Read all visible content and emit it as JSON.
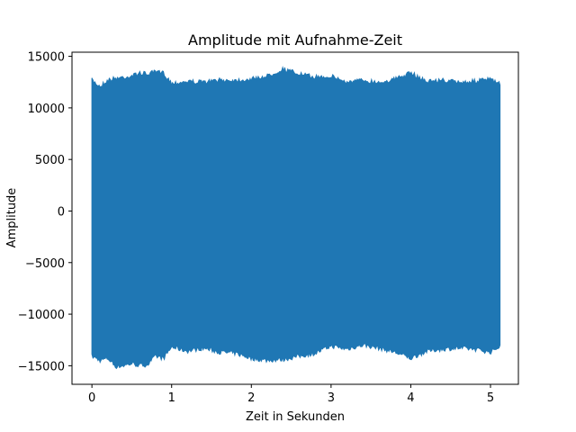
{
  "chart_data": {
    "type": "area",
    "title": "Amplitude mit Aufnahme-Zeit",
    "xlabel": "Zeit in Sekunden",
    "ylabel": "Amplitude",
    "xlim": [
      -0.25,
      5.35
    ],
    "ylim": [
      -16800,
      15400
    ],
    "xticks": [
      0,
      1,
      2,
      3,
      4,
      5
    ],
    "xtick_labels": [
      "0",
      "1",
      "2",
      "3",
      "4",
      "5"
    ],
    "yticks": [
      -15000,
      -10000,
      -5000,
      0,
      5000,
      10000,
      15000
    ],
    "ytick_labels": [
      "−15000",
      "−10000",
      "−5000",
      "0",
      "5000",
      "10000",
      "15000"
    ],
    "grid": false,
    "series": [
      {
        "color": "#1f77b4",
        "x_range": [
          0,
          5.12
        ],
        "upper_envelope": {
          "x": [
            0,
            0.1,
            0.2,
            0.3,
            0.4,
            0.5,
            0.6,
            0.7,
            0.8,
            0.9,
            1.0,
            1.2,
            1.4,
            1.6,
            1.8,
            2.0,
            2.2,
            2.4,
            2.6,
            2.8,
            3.0,
            3.2,
            3.4,
            3.6,
            3.8,
            4.0,
            4.2,
            4.4,
            4.6,
            4.8,
            5.0,
            5.12
          ],
          "y": [
            12900,
            12300,
            12900,
            13100,
            13200,
            13300,
            13600,
            13500,
            13700,
            13600,
            12600,
            12800,
            12700,
            12900,
            12900,
            13000,
            13300,
            14000,
            13500,
            13200,
            13300,
            12700,
            12900,
            12700,
            13000,
            13600,
            12800,
            12900,
            12700,
            12800,
            13000,
            12500
          ]
        },
        "lower_envelope": {
          "x": [
            0,
            0.1,
            0.2,
            0.3,
            0.4,
            0.5,
            0.6,
            0.7,
            0.8,
            0.9,
            1.0,
            1.2,
            1.4,
            1.6,
            1.8,
            2.0,
            2.2,
            2.4,
            2.6,
            2.8,
            3.0,
            3.2,
            3.4,
            3.6,
            3.8,
            4.0,
            4.2,
            4.4,
            4.6,
            4.8,
            5.0,
            5.12
          ],
          "y": [
            -14300,
            -14700,
            -14500,
            -15300,
            -15200,
            -15000,
            -15200,
            -15100,
            -14300,
            -14500,
            -13400,
            -13800,
            -13500,
            -13900,
            -14000,
            -14500,
            -14700,
            -14600,
            -14300,
            -14000,
            -13300,
            -13600,
            -13200,
            -13500,
            -13900,
            -14500,
            -13800,
            -13600,
            -13500,
            -13600,
            -13900,
            -13300
          ]
        }
      }
    ]
  }
}
